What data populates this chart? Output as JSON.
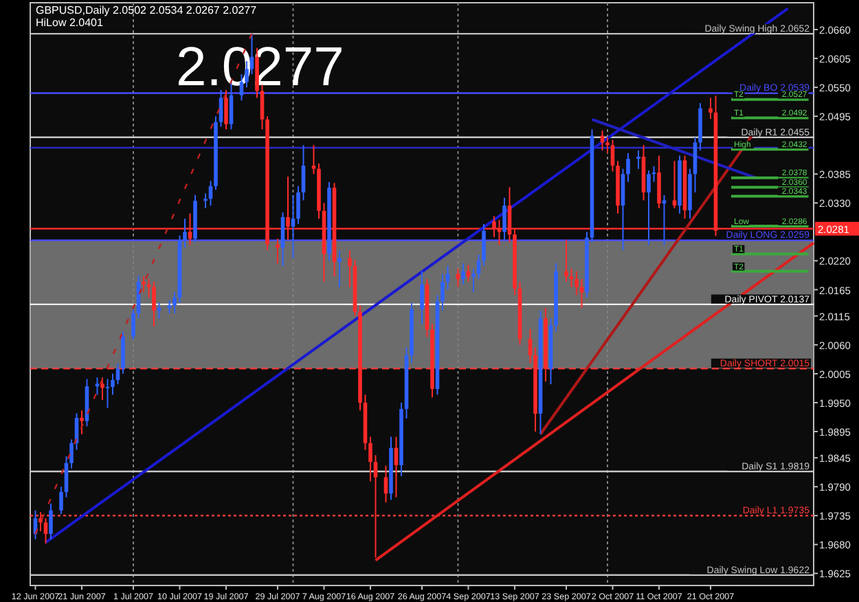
{
  "chart_data": {
    "type": "candlestick",
    "annotations": [
      "GBPUSD,Daily  2.0502 2.0534 2.0267 2.0277",
      "HiLow 2.0401",
      "2.0277"
    ],
    "x": [
      "2007-06-12",
      "2007-06-13",
      "2007-06-14",
      "2007-06-15",
      "2007-06-17",
      "2007-06-18",
      "2007-06-19",
      "2007-06-20",
      "2007-06-21",
      "2007-06-22",
      "2007-06-24",
      "2007-06-25",
      "2007-06-26",
      "2007-06-27",
      "2007-06-28",
      "2007-06-29",
      "2007-07-01",
      "2007-07-02",
      "2007-07-03",
      "2007-07-04",
      "2007-07-05",
      "2007-07-06",
      "2007-07-08",
      "2007-07-09",
      "2007-07-10",
      "2007-07-11",
      "2007-07-12",
      "2007-07-13",
      "2007-07-15",
      "2007-07-16",
      "2007-07-17",
      "2007-07-18",
      "2007-07-19",
      "2007-07-20",
      "2007-07-22",
      "2007-07-23",
      "2007-07-24",
      "2007-07-25",
      "2007-07-26",
      "2007-07-27",
      "2007-07-29",
      "2007-07-30",
      "2007-07-31",
      "2007-08-01",
      "2007-08-02",
      "2007-08-03",
      "2007-08-05",
      "2007-08-06",
      "2007-08-07",
      "2007-08-08",
      "2007-08-09",
      "2007-08-10",
      "2007-08-12",
      "2007-08-13",
      "2007-08-14",
      "2007-08-15",
      "2007-08-16",
      "2007-08-17",
      "2007-08-19",
      "2007-08-20",
      "2007-08-21",
      "2007-08-22",
      "2007-08-23",
      "2007-08-24",
      "2007-08-26",
      "2007-08-27",
      "2007-08-28",
      "2007-08-29",
      "2007-08-30",
      "2007-08-31",
      "2007-09-02",
      "2007-09-03",
      "2007-09-04",
      "2007-09-05",
      "2007-09-06",
      "2007-09-07",
      "2007-09-09",
      "2007-09-10",
      "2007-09-11",
      "2007-09-12",
      "2007-09-13",
      "2007-09-14",
      "2007-09-16",
      "2007-09-17",
      "2007-09-18",
      "2007-09-19",
      "2007-09-20",
      "2007-09-21",
      "2007-09-23",
      "2007-09-24",
      "2007-09-25",
      "2007-09-26",
      "2007-09-27",
      "2007-09-28",
      "2007-09-30",
      "2007-10-01",
      "2007-10-02",
      "2007-10-03",
      "2007-10-04",
      "2007-10-05",
      "2007-10-07",
      "2007-10-08",
      "2007-10-09",
      "2007-10-10",
      "2007-10-11",
      "2007-10-12",
      "2007-10-14",
      "2007-10-15",
      "2007-10-16",
      "2007-10-17",
      "2007-10-18",
      "2007-10-19",
      "2007-10-21",
      "2007-10-22"
    ],
    "ohlc": [
      [
        1.97,
        1.9745,
        1.969,
        1.973
      ],
      [
        1.973,
        1.9742,
        1.9705,
        1.9722
      ],
      [
        1.9722,
        1.973,
        1.9682,
        1.97
      ],
      [
        1.97,
        1.9758,
        1.969,
        1.9745
      ],
      [
        1.9745,
        1.979,
        1.9738,
        1.978
      ],
      [
        1.978,
        1.9848,
        1.977,
        1.9835
      ],
      [
        1.9835,
        1.988,
        1.9825,
        1.9873
      ],
      [
        1.9873,
        1.993,
        1.986,
        1.9921
      ],
      [
        1.9921,
        1.9935,
        1.989,
        1.9915
      ],
      [
        1.9915,
        1.9995,
        1.9905,
        1.9981
      ],
      [
        1.9981,
        1.9998,
        1.9965,
        1.9986
      ],
      [
        1.9986,
        1.9998,
        1.9955,
        1.9978
      ],
      [
        1.9978,
        1.9995,
        1.994,
        1.998
      ],
      [
        1.998,
        2.0005,
        1.9965,
        1.9993
      ],
      [
        1.9993,
        2.0025,
        1.9985,
        2.0015
      ],
      [
        2.0015,
        2.0085,
        2.0005,
        2.0076
      ],
      [
        2.0076,
        2.013,
        2.007,
        2.012
      ],
      [
        2.012,
        2.0192,
        2.011,
        2.018
      ],
      [
        2.018,
        2.019,
        2.016,
        2.0175
      ],
      [
        2.0175,
        2.0185,
        2.015,
        2.017
      ],
      [
        2.017,
        2.018,
        2.0095,
        2.0125
      ],
      [
        2.0125,
        2.014,
        2.011,
        2.013
      ],
      [
        2.013,
        2.0145,
        2.012,
        2.0135
      ],
      [
        2.0135,
        2.016,
        2.012,
        2.015
      ],
      [
        2.015,
        2.0268,
        2.014,
        2.0259
      ],
      [
        2.0259,
        2.03,
        2.0245,
        2.0275
      ],
      [
        2.0275,
        2.031,
        2.025,
        2.0262
      ],
      [
        2.0262,
        2.0345,
        2.0255,
        2.0334
      ],
      [
        2.0334,
        2.0348,
        2.032,
        2.0338
      ],
      [
        2.0338,
        2.0372,
        2.0325,
        2.0362
      ],
      [
        2.0362,
        2.0495,
        2.0355,
        2.0484
      ],
      [
        2.0484,
        2.0545,
        2.0475,
        2.053
      ],
      [
        2.053,
        2.0545,
        2.047,
        2.048
      ],
      [
        2.048,
        2.056,
        2.047,
        2.0535
      ],
      [
        2.0535,
        2.0575,
        2.0525,
        2.056
      ],
      [
        2.056,
        2.06,
        2.055,
        2.0585
      ],
      [
        2.0585,
        2.0652,
        2.0575,
        2.0608
      ],
      [
        2.0608,
        2.0625,
        2.053,
        2.0543
      ],
      [
        2.0543,
        2.0555,
        2.047,
        2.0489
      ],
      [
        2.0489,
        2.0495,
        2.024,
        2.0251
      ],
      [
        2.0251,
        2.0262,
        2.0215,
        2.0245
      ],
      [
        2.0245,
        2.0312,
        2.021,
        2.0303
      ],
      [
        2.0303,
        2.038,
        2.026,
        2.0285
      ],
      [
        2.0285,
        2.0345,
        2.0225,
        2.03
      ],
      [
        2.03,
        2.0362,
        2.029,
        2.035
      ],
      [
        2.035,
        2.044,
        2.0335,
        2.0401
      ],
      [
        2.0401,
        2.044,
        2.0385,
        2.0395
      ],
      [
        2.0395,
        2.0405,
        2.03,
        2.0315
      ],
      [
        2.0315,
        2.033,
        2.018,
        2.0233
      ],
      [
        2.0233,
        2.037,
        2.022,
        2.0359
      ],
      [
        2.0359,
        2.0368,
        2.019,
        2.0218
      ],
      [
        2.0218,
        2.024,
        2.017,
        2.0225
      ],
      [
        2.0225,
        2.024,
        2.017,
        2.021
      ],
      [
        2.021,
        2.0222,
        2.0115,
        2.0123
      ],
      [
        2.0123,
        2.0135,
        1.9935,
        1.995
      ],
      [
        1.995,
        1.9965,
        1.986,
        1.9873
      ],
      [
        1.9873,
        1.9885,
        1.98,
        1.9837
      ],
      [
        1.9837,
        1.985,
        1.9655,
        1.9808
      ],
      [
        1.9808,
        1.983,
        1.976,
        1.9777
      ],
      [
        1.9777,
        1.9885,
        1.9765,
        1.9864
      ],
      [
        1.9864,
        1.9885,
        1.977,
        1.9831
      ],
      [
        1.9831,
        1.995,
        1.981,
        1.9938
      ],
      [
        1.9938,
        2.0055,
        1.992,
        2.004
      ],
      [
        2.004,
        2.014,
        2.0025,
        2.0128
      ],
      [
        2.0128,
        2.02,
        2.01,
        2.0175
      ],
      [
        2.0175,
        2.0185,
        2.0075,
        2.0089
      ],
      [
        2.0089,
        2.01,
        1.996,
        1.9976
      ],
      [
        1.9976,
        2.0155,
        1.9965,
        2.0143
      ],
      [
        2.0143,
        2.0195,
        2.0125,
        2.018
      ],
      [
        2.018,
        2.021,
        2.0165,
        2.0195
      ],
      [
        2.0195,
        2.0205,
        2.017,
        2.0185
      ],
      [
        2.0185,
        2.0215,
        2.0175,
        2.02
      ],
      [
        2.02,
        2.0212,
        2.018,
        2.019
      ],
      [
        2.019,
        2.0205,
        2.016,
        2.0195
      ],
      [
        2.0195,
        2.0232,
        2.0185,
        2.022
      ],
      [
        2.022,
        2.029,
        2.021,
        2.0277
      ],
      [
        2.0295,
        2.0305,
        2.0265,
        2.0282
      ],
      [
        2.0282,
        2.0298,
        2.025,
        2.0275
      ],
      [
        2.0275,
        2.034,
        2.026,
        2.0325
      ],
      [
        2.0325,
        2.036,
        2.0255,
        2.027
      ],
      [
        2.027,
        2.028,
        2.0155,
        2.0167
      ],
      [
        2.0167,
        2.018,
        2.006,
        2.0071
      ],
      [
        2.0071,
        2.009,
        2.0025,
        2.004
      ],
      [
        2.004,
        2.0055,
        1.9895,
        1.9929
      ],
      [
        1.9929,
        2.0125,
        1.989,
        2.011
      ],
      [
        2.011,
        2.013,
        1.999,
        2.0014
      ],
      [
        2.0014,
        2.011,
        1.9985,
        2.0097
      ],
      [
        2.0097,
        2.0215,
        2.0085,
        2.02
      ],
      [
        2.02,
        2.026,
        2.018,
        2.019
      ],
      [
        2.019,
        2.0205,
        2.017,
        2.0185
      ],
      [
        2.0185,
        2.02,
        2.0155,
        2.017
      ],
      [
        2.017,
        2.0185,
        2.013,
        2.016
      ],
      [
        2.016,
        2.0275,
        2.015,
        2.0264
      ],
      [
        2.0264,
        2.047,
        2.0255,
        2.0458
      ],
      [
        2.0458,
        2.0468,
        2.043,
        2.0445
      ],
      [
        2.0445,
        2.0455,
        2.0425,
        2.044
      ],
      [
        2.044,
        2.045,
        2.039,
        2.0401
      ],
      [
        2.0401,
        2.041,
        2.031,
        2.0325
      ],
      [
        2.0325,
        2.0395,
        2.024,
        2.0385
      ],
      [
        2.0385,
        2.0425,
        2.037,
        2.0414
      ],
      [
        2.0414,
        2.043,
        2.0395,
        2.0418
      ],
      [
        2.0418,
        2.044,
        2.0335,
        2.035
      ],
      [
        2.035,
        2.0392,
        2.025,
        2.0385
      ],
      [
        2.0385,
        2.04,
        2.037,
        2.0388
      ],
      [
        2.0388,
        2.042,
        2.032,
        2.0329
      ],
      [
        2.0329,
        2.0345,
        2.025,
        2.0335
      ],
      [
        2.0335,
        2.041,
        2.032,
        2.0325
      ],
      [
        2.0325,
        2.042,
        2.031,
        2.0411
      ],
      [
        2.0411,
        2.042,
        2.03,
        2.0316
      ],
      [
        2.0316,
        2.0395,
        2.03,
        2.0385
      ],
      [
        2.0385,
        2.0455,
        2.035,
        2.0445
      ],
      [
        2.0445,
        2.052,
        2.043,
        2.051
      ],
      [
        2.051,
        2.053,
        2.049,
        2.0502
      ],
      [
        2.0502,
        2.0534,
        2.0267,
        2.0277
      ]
    ],
    "series": [
      {
        "type": "line",
        "x": [
          "2007-06-14",
          "2007-11-05"
        ],
        "values": [
          1.9684,
          2.07
        ],
        "color": "#1a1ad0",
        "line_style": "solid"
      },
      {
        "type": "line",
        "x": [
          "2007-08-17",
          "2007-11-10"
        ],
        "values": [
          1.965,
          2.0254
        ],
        "color": "#e02020",
        "line_style": "solid"
      },
      {
        "type": "line",
        "x": [
          "2007-06-12",
          "2007-07-24"
        ],
        "values": [
          1.97,
          2.0652
        ],
        "color": "#c02020",
        "line_style": "dotted"
      },
      {
        "type": "line",
        "x": [
          "2007-09-18",
          "2007-10-29"
        ],
        "values": [
          1.989,
          2.0458
        ],
        "color": "#b01818",
        "line_style": "solid"
      },
      {
        "type": "line",
        "x": [
          "2007-09-28",
          "2007-10-30"
        ],
        "values": [
          2.0489,
          2.0377
        ],
        "color": "#2020c0",
        "line_style": "solid"
      },
      {
        "type": "line",
        "name": "T2",
        "x": [
          "2007-10-25",
          "2007-11-09"
        ],
        "values": [
          2.0527,
          2.0527
        ],
        "color": "#3caa3c",
        "line_style": "solid",
        "value_labels": [
          null,
          "2.0527"
        ]
      },
      {
        "type": "line",
        "name": "T1",
        "x": [
          "2007-10-25",
          "2007-11-09"
        ],
        "values": [
          2.0492,
          2.0492
        ],
        "color": "#3caa3c",
        "line_style": "solid",
        "value_labels": [
          null,
          "2.0492"
        ]
      },
      {
        "type": "line",
        "name": "High",
        "x": [
          "2007-10-25",
          "2007-11-09"
        ],
        "values": [
          2.0432,
          2.0432
        ],
        "color": "#3caa3c",
        "line_style": "solid",
        "value_labels": [
          null,
          "2.0432"
        ]
      },
      {
        "type": "line",
        "x": [
          "2007-10-25",
          "2007-11-09"
        ],
        "values": [
          2.0378,
          2.0378
        ],
        "color": "#3caa3c",
        "line_style": "solid",
        "value_labels": [
          null,
          "2.0378"
        ]
      },
      {
        "type": "line",
        "x": [
          "2007-10-25",
          "2007-11-09"
        ],
        "values": [
          2.036,
          2.036
        ],
        "color": "#3caa3c",
        "line_style": "solid",
        "value_labels": [
          null,
          "2.0360"
        ]
      },
      {
        "type": "line",
        "x": [
          "2007-10-25",
          "2007-11-09"
        ],
        "values": [
          2.0343,
          2.0343
        ],
        "color": "#3caa3c",
        "line_style": "solid",
        "value_labels": [
          null,
          "2.0343"
        ]
      },
      {
        "type": "line",
        "name": "Low",
        "x": [
          "2007-10-25",
          "2007-11-09"
        ],
        "values": [
          2.0286,
          2.0286
        ],
        "color": "#3caa3c",
        "line_style": "solid",
        "value_labels": [
          null,
          "2.0286"
        ]
      },
      {
        "type": "line",
        "name": "T1",
        "x": [
          "2007-10-25",
          "2007-11-09"
        ],
        "values": [
          2.0233,
          2.0233
        ],
        "color": "#3caa3c",
        "line_style": "solid"
      },
      {
        "type": "line",
        "name": "T2",
        "x": [
          "2007-10-25",
          "2007-11-09"
        ],
        "values": [
          2.02,
          2.02
        ],
        "color": "#3caa3c",
        "line_style": "solid"
      }
    ],
    "ylim": [
      1.9602,
      2.0711
    ],
    "xlim": [
      "2007-06-11",
      "2007-11-10"
    ],
    "yticks": [
      {
        "value": 2.066,
        "label": "2.0660"
      },
      {
        "value": 2.0605,
        "label": "2.0605"
      },
      {
        "value": 2.055,
        "label": "2.0550"
      },
      {
        "value": 2.0495,
        "label": "2.0495"
      },
      {
        "value": 2.0385,
        "label": "2.0385"
      },
      {
        "value": 2.033,
        "label": "2.0330"
      },
      {
        "value": 2.022,
        "label": "2.0220"
      },
      {
        "value": 2.0165,
        "label": "2.0165"
      },
      {
        "value": 2.0115,
        "label": "2.0115"
      },
      {
        "value": 2.006,
        "label": "2.0060"
      },
      {
        "value": 2.0005,
        "label": "2.0005"
      },
      {
        "value": 1.995,
        "label": "1.9950"
      },
      {
        "value": 1.9895,
        "label": "1.9895"
      },
      {
        "value": 1.9845,
        "label": "1.9845"
      },
      {
        "value": 1.979,
        "label": "1.9790"
      },
      {
        "value": 1.9735,
        "label": "1.9735"
      },
      {
        "value": 1.968,
        "label": "1.9680"
      },
      {
        "value": 1.9625,
        "label": "1.9625"
      }
    ],
    "xticks": [
      {
        "value": "2007-06-12",
        "label": "12 Jun 2007"
      },
      {
        "value": "2007-06-21",
        "label": "21 Jun 2007"
      },
      {
        "value": "2007-07-01",
        "label": "1 Jul 2007"
      },
      {
        "value": "2007-07-10",
        "label": "10 Jul 2007"
      },
      {
        "value": "2007-07-19",
        "label": "19 Jul 2007"
      },
      {
        "value": "2007-07-29",
        "label": "29 Jul 2007"
      },
      {
        "value": "2007-08-07",
        "label": "7 Aug 2007"
      },
      {
        "value": "2007-08-16",
        "label": "16 Aug 2007"
      },
      {
        "value": "2007-08-26",
        "label": "26 Aug 2007"
      },
      {
        "value": "2007-09-04",
        "label": "4 Sep 2007"
      },
      {
        "value": "2007-09-13",
        "label": "13 Sep 2007"
      },
      {
        "value": "2007-09-23",
        "label": "23 Sep 2007"
      },
      {
        "value": "2007-10-02",
        "label": "2 Oct 2007"
      },
      {
        "value": "2007-10-11",
        "label": "11 Oct 2007"
      },
      {
        "value": "2007-10-21",
        "label": "21 Oct 2007"
      }
    ],
    "bands": [
      {
        "axis": "y",
        "from": 2.0015,
        "to": 2.0259,
        "color": "#8c8c8c"
      }
    ],
    "ref_lines": [
      {
        "axis": "x",
        "value": "2007-07-01",
        "color": "#808080",
        "line_style": "dotted"
      },
      {
        "axis": "x",
        "value": "2007-08-01",
        "color": "#808080",
        "line_style": "dotted"
      },
      {
        "axis": "x",
        "value": "2007-09-02",
        "color": "#808080",
        "line_style": "dotted"
      },
      {
        "axis": "x",
        "value": "2007-10-01",
        "color": "#808080",
        "line_style": "dotted"
      },
      {
        "axis": "y",
        "value": 2.0652,
        "label": "Daily Swing High 2.0652",
        "color": "#c0c0c0",
        "line_style": "solid"
      },
      {
        "axis": "y",
        "value": 2.0539,
        "label": "Daily BO 2.0539",
        "color": "#4a4aff",
        "line_style": "solid"
      },
      {
        "axis": "y",
        "value": 2.0455,
        "label": "Daily R1 2.0455",
        "color": "#c8c8c8",
        "line_style": "solid"
      },
      {
        "axis": "y",
        "value": 2.0435,
        "color": "#2a2ac8",
        "line_style": "solid"
      },
      {
        "axis": "y",
        "value": 2.0281,
        "label": "2.0281",
        "color": "#ff2a2a",
        "line_style": "solid"
      },
      {
        "axis": "y",
        "value": 2.0259,
        "label": "Daily LONG 2.0259",
        "color": "#4a4aff",
        "line_style": "solid"
      },
      {
        "axis": "y",
        "value": 2.0137,
        "label": "Daily PIVOT 2.0137",
        "color": "#f0f0f0",
        "line_style": "solid"
      },
      {
        "axis": "y",
        "value": 2.0015,
        "label": "Daily SHORT 2.0015",
        "color": "#ff3a3a",
        "line_style": "dashed"
      },
      {
        "axis": "y",
        "value": 1.9819,
        "label": "Daily S1 1.9819",
        "color": "#c8c8c8",
        "line_style": "solid"
      },
      {
        "axis": "y",
        "value": 1.9735,
        "label": "Daily L1 1.9735",
        "color": "#ff3a3a",
        "line_style": "dotted"
      },
      {
        "axis": "y",
        "value": 1.9622,
        "label": "Daily Swing Low 1.9622",
        "color": "#c0c0c0",
        "line_style": "solid"
      }
    ]
  }
}
